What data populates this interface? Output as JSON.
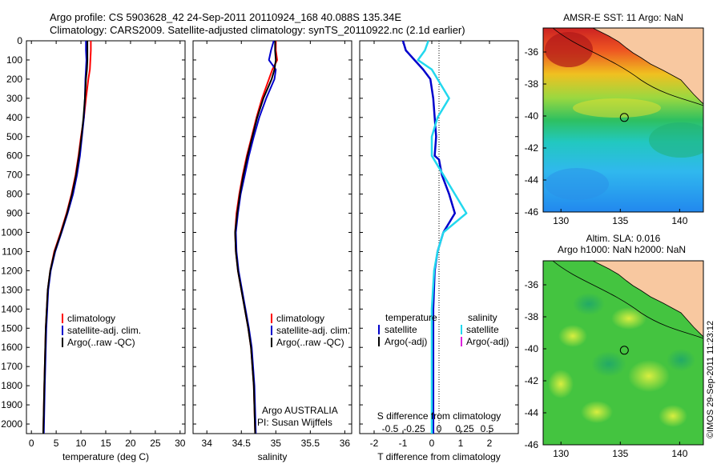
{
  "header": {
    "line1": "Argo profile: CS 5903628_42 24-Sep-2011 20110924_168 40.088S 135.34E",
    "line2": "Climatology: CARS2009. Satellite-adjusted climatology: synTS_20110922.nc (2.1d earlier)"
  },
  "colors": {
    "climatology": "#ff0000",
    "satellite": "#0000cc",
    "argo": "#000000",
    "satellite_salinity": "#22d8ee",
    "argo_adj_salinity": "#dd22dd"
  },
  "chart_data": [
    {
      "type": "line",
      "xlabel": "temperature (deg C)",
      "xlim": [
        -1,
        31
      ],
      "xticks": [
        "0",
        "5",
        "10",
        "15",
        "20",
        "25",
        "30"
      ],
      "ylim": [
        0,
        2050
      ],
      "yticks": [
        "0",
        "100",
        "200",
        "300",
        "400",
        "500",
        "600",
        "700",
        "800",
        "900",
        "1000",
        "1100",
        "1200",
        "1300",
        "1400",
        "1500",
        "1600",
        "1700",
        "1800",
        "1900",
        "2000"
      ],
      "legend": [
        "climatology",
        "satellite-adj. clim.",
        "Argo(..raw -QC)"
      ],
      "series": [
        {
          "name": "climatology",
          "depth": [
            0,
            50,
            100,
            150,
            200,
            300,
            400,
            500,
            600,
            700,
            800,
            900,
            1000,
            1100,
            1200,
            1300,
            1500,
            1800,
            2050
          ],
          "values": [
            12.0,
            12.0,
            11.9,
            11.8,
            11.5,
            11.0,
            10.6,
            10.0,
            9.5,
            8.9,
            8.1,
            7.1,
            5.9,
            4.6,
            3.8,
            3.3,
            2.9,
            2.6,
            2.4
          ]
        },
        {
          "name": "satellite-adj. clim.",
          "depth": [
            0,
            50,
            100,
            150,
            200,
            300,
            400,
            500,
            600,
            700,
            800,
            900,
            1000,
            1100,
            1200,
            1300,
            1500,
            1800,
            2050
          ],
          "values": [
            11.0,
            11.0,
            11.1,
            11.0,
            10.9,
            10.8,
            10.6,
            10.2,
            9.8,
            9.2,
            8.4,
            7.3,
            6.1,
            4.8,
            3.9,
            3.4,
            3.0,
            2.7,
            2.5
          ]
        },
        {
          "name": "Argo(..raw -QC)",
          "depth": [
            0,
            50,
            100,
            150,
            200,
            300,
            400,
            500,
            600,
            700,
            800,
            900,
            1000,
            1100,
            1200,
            1300,
            1500,
            1800,
            2050
          ],
          "values": [
            11.3,
            11.3,
            11.3,
            11.2,
            11.0,
            10.8,
            10.5,
            10.1,
            9.6,
            9.0,
            8.2,
            7.2,
            6.0,
            4.7,
            3.8,
            3.3,
            2.9,
            2.6,
            2.4
          ]
        }
      ]
    },
    {
      "type": "line",
      "xlabel": "salinity",
      "xlim": [
        33.8,
        36.1
      ],
      "xticks": [
        "34",
        "34.5",
        "35",
        "35.5",
        "36"
      ],
      "ylim": [
        0,
        2050
      ],
      "legend": [
        "climatology",
        "satellite-adj. clim.",
        "Argo(..raw -QC)"
      ],
      "annotation": [
        "Argo AUSTRALIA",
        "PI: Susan Wijffels"
      ],
      "series": [
        {
          "name": "climatology",
          "depth": [
            0,
            50,
            100,
            150,
            200,
            300,
            400,
            500,
            600,
            700,
            800,
            900,
            1000,
            1100,
            1200,
            1300,
            1400,
            1500,
            1600,
            1800,
            2050
          ],
          "values": [
            35.0,
            35.0,
            35.02,
            34.95,
            34.9,
            34.8,
            34.72,
            34.65,
            34.58,
            34.52,
            34.47,
            34.43,
            34.41,
            34.42,
            34.45,
            34.5,
            34.55,
            34.6,
            34.64,
            34.68,
            34.7
          ]
        },
        {
          "name": "satellite-adj. clim.",
          "depth": [
            0,
            50,
            100,
            150,
            200,
            300,
            400,
            500,
            600,
            700,
            800,
            900,
            1000,
            1100,
            1200,
            1300,
            1400,
            1500,
            1600,
            1800,
            2050
          ],
          "values": [
            34.97,
            34.93,
            34.9,
            35.0,
            34.98,
            34.86,
            34.76,
            34.68,
            34.61,
            34.55,
            34.49,
            34.45,
            34.42,
            34.43,
            34.46,
            34.51,
            34.56,
            34.61,
            34.65,
            34.69,
            34.71
          ]
        },
        {
          "name": "Argo(..raw -QC)",
          "depth": [
            0,
            50,
            100,
            150,
            200,
            300,
            400,
            500,
            600,
            700,
            800,
            900,
            1000,
            1100,
            1200,
            1300,
            1400,
            1500,
            1600,
            1800,
            2050
          ],
          "values": [
            34.99,
            34.99,
            35.0,
            34.98,
            34.94,
            34.82,
            34.73,
            34.66,
            34.59,
            34.53,
            34.48,
            34.44,
            34.41,
            34.42,
            34.45,
            34.5,
            34.55,
            34.6,
            34.64,
            34.68,
            34.7
          ]
        }
      ]
    },
    {
      "type": "line",
      "xlabel": "T difference from climatology",
      "xlabel_top": "S difference from climatology",
      "xlim": [
        -2.5,
        3.0
      ],
      "xticks": [
        "-2",
        "-1",
        "0",
        "1",
        "2"
      ],
      "xticks_top": [
        "-0.5",
        "-0.25",
        "0",
        "0.25",
        "0.5"
      ],
      "ylim": [
        0,
        2050
      ],
      "legend_groups": [
        {
          "heading": "temperature",
          "entries": [
            "satellite",
            "Argo(-adj)"
          ]
        },
        {
          "heading": "salinity",
          "entries": [
            "satellite",
            "Argo(-adj)"
          ]
        }
      ],
      "series": [
        {
          "name": "temperature satellite",
          "depth": [
            0,
            50,
            100,
            150,
            200,
            300,
            400,
            500,
            600,
            620,
            700,
            800,
            900,
            1000,
            1100,
            1200,
            1400,
            1800,
            2050
          ],
          "values": [
            -1.0,
            -0.9,
            -0.6,
            -0.3,
            -0.05,
            0.05,
            0.1,
            0.15,
            0.1,
            0.25,
            0.35,
            0.6,
            0.8,
            0.4,
            0.2,
            0.1,
            0.05,
            0.05,
            0.05
          ]
        },
        {
          "name": "salinity satellite",
          "depth": [
            0,
            50,
            100,
            150,
            200,
            300,
            400,
            500,
            600,
            700,
            800,
            900,
            1000,
            1100,
            1200,
            1400,
            1800,
            2050
          ],
          "values": [
            -0.03,
            -0.06,
            -0.12,
            0.0,
            0.05,
            0.15,
            0.05,
            0.0,
            0.0,
            0.1,
            0.2,
            0.3,
            0.1,
            0.05,
            0.02,
            0.0,
            0.0,
            0.0
          ]
        }
      ]
    },
    {
      "type": "heatmap",
      "title": "AMSR-E SST: 11 Argo: NaN",
      "xlim": [
        128.5,
        142
      ],
      "xticks": [
        "130",
        "135",
        "140"
      ],
      "ylim": [
        -46,
        -34.5
      ],
      "yticks": [
        "-36",
        "-38",
        "-40",
        "-42",
        "-44",
        "-46"
      ],
      "marker": {
        "lon": 135.34,
        "lat": -40.088
      }
    },
    {
      "type": "heatmap",
      "title": "Altim. SLA: 0.016",
      "subtitle": "Argo h1000: NaN h2000: NaN",
      "xlim": [
        128.5,
        142
      ],
      "xticks": [
        "130",
        "135",
        "140"
      ],
      "ylim": [
        -46,
        -34.5
      ],
      "yticks": [
        "-36",
        "-38",
        "-40",
        "-42",
        "-44",
        "-46"
      ],
      "marker": {
        "lon": 135.34,
        "lat": -40.088
      }
    }
  ],
  "footer": "©IMOS 29-Sep-2011 11:23:12"
}
